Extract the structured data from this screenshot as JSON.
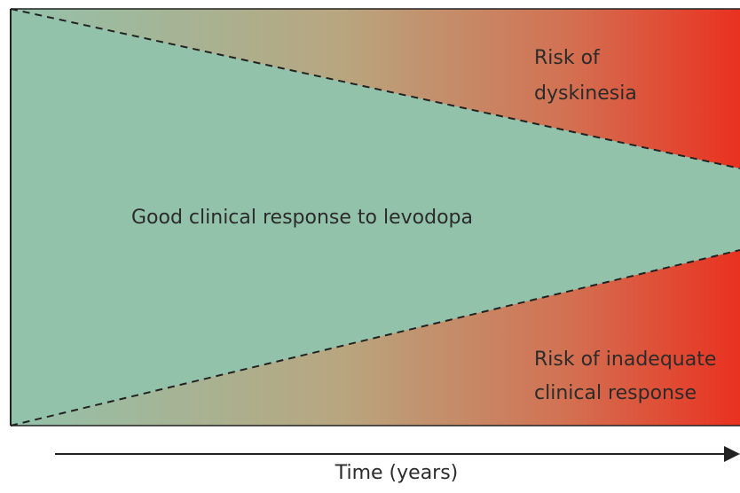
{
  "labels": {
    "center": "Good clinical response to levodopa",
    "top_right": [
      "Risk of",
      "dyskinesia"
    ],
    "bottom_right": [
      "Risk of inadequate",
      "clinical response"
    ],
    "axis": "Time (years)"
  }
}
